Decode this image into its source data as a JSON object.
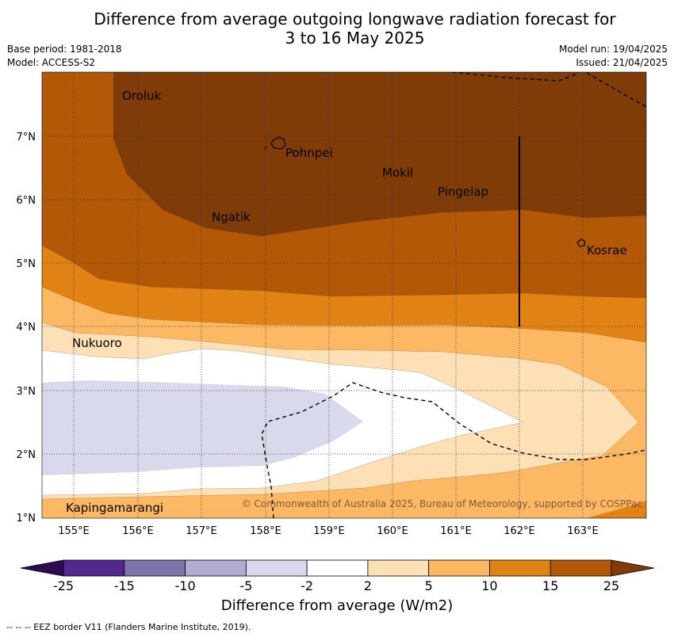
{
  "header": {
    "title_line1": "Difference from average outgoing longwave radiation forecast for",
    "title_line2": "3 to 16 May 2025",
    "base_period": "Base period: 1981-2018",
    "model": "Model: ACCESS-S2",
    "model_run": "Model run: 19/04/2025",
    "issued": "Issued: 21/04/2025"
  },
  "map": {
    "x_ticks": [
      "155°E",
      "156°E",
      "157°E",
      "158°E",
      "159°E",
      "160°E",
      "161°E",
      "162°E",
      "163°E"
    ],
    "y_ticks": [
      "7°N",
      "6°N",
      "5°N",
      "4°N",
      "3°N",
      "2°N",
      "1°N"
    ],
    "places": [
      {
        "name": "Oroluk"
      },
      {
        "name": "Pohnpei"
      },
      {
        "name": "Mokil"
      },
      {
        "name": "Pingelap"
      },
      {
        "name": "Ngatik"
      },
      {
        "name": "Kosrae"
      },
      {
        "name": "Nukuoro"
      },
      {
        "name": "Kapingamarangi"
      }
    ],
    "copyright": "© Commonwealth of Australia 2025, Bureau of Meteorology, supported by COSPPac"
  },
  "colorbar": {
    "labels": [
      "-25",
      "-15",
      "-10",
      "-5",
      "-2",
      "2",
      "5",
      "10",
      "15",
      "25"
    ],
    "colors": [
      "#2e0a52",
      "#54278f",
      "#8073ac",
      "#b2abd2",
      "#d8daeb",
      "#ffffff",
      "#fee0b6",
      "#fdb863",
      "#e08214",
      "#b35806",
      "#7f3b08"
    ],
    "title": "Difference from average (W/m2)"
  },
  "footer": {
    "eez_note": "--  --  -- EEZ border V11 (Flanders Marine Institute, 2019)."
  }
}
